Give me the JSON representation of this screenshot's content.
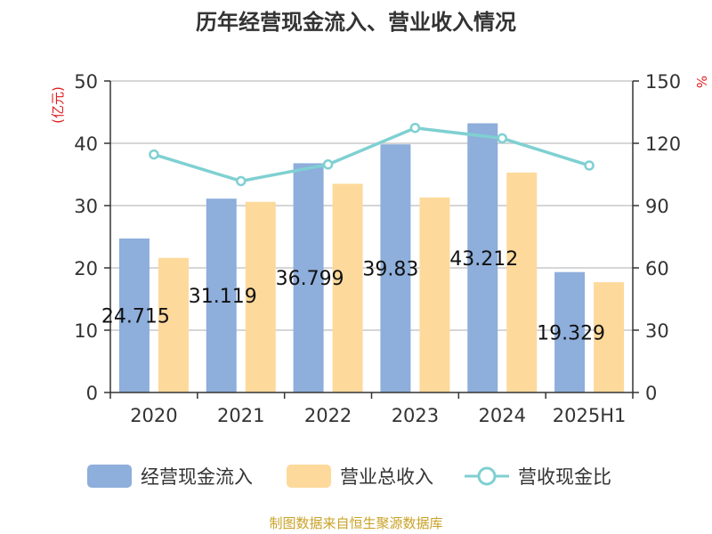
{
  "chart_data": {
    "type": "bar",
    "title": "历年经营现金流入、营业收入情况",
    "categories": [
      "2020",
      "2021",
      "2022",
      "2023",
      "2024",
      "2025H1"
    ],
    "series": [
      {
        "name": "经营现金流入",
        "kind": "bar",
        "axis": "left",
        "color": "#8eaedb",
        "values": [
          24.715,
          31.119,
          36.799,
          39.83,
          43.212,
          19.329
        ],
        "labels": [
          "24.715",
          "31.119",
          "36.799",
          "39.83",
          "43.212",
          "19.329"
        ]
      },
      {
        "name": "营业总收入",
        "kind": "bar",
        "axis": "left",
        "color": "#fdd99b",
        "values": [
          21.6,
          30.6,
          33.5,
          31.3,
          35.3,
          17.7
        ]
      },
      {
        "name": "营收现金比",
        "kind": "line",
        "axis": "right",
        "color": "#7fd0d2",
        "values": [
          114.6,
          101.8,
          109.8,
          127.4,
          122.4,
          109.3
        ]
      }
    ],
    "yleft": {
      "label": "(亿元)",
      "min": 0,
      "max": 50,
      "ticks": [
        "0",
        "10",
        "20",
        "30",
        "40",
        "50"
      ]
    },
    "yright": {
      "label": "%",
      "min": 0,
      "max": 150,
      "ticks": [
        "0",
        "30",
        "60",
        "90",
        "120",
        "150"
      ]
    },
    "grid": true,
    "legend_position": "bottom",
    "source": "制图数据来自恒生聚源数据库"
  }
}
